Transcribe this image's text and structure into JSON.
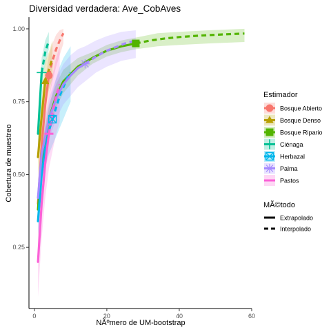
{
  "chart_data": {
    "type": "line",
    "title": "Diversidad verdadera: Ave_CobAves",
    "xlabel": "NÃºmero de UM-bootstrap",
    "ylabel": "Cobertura de muestreo",
    "xlim": [
      -1.5,
      60
    ],
    "ylim": [
      0.04,
      1.04
    ],
    "x_ticks": [
      {
        "value": 0,
        "label": "0"
      },
      {
        "value": 20,
        "label": "20"
      },
      {
        "value": 40,
        "label": "40"
      },
      {
        "value": 60,
        "label": "60"
      }
    ],
    "y_ticks": [
      {
        "value": 0.25,
        "label": "0.25"
      },
      {
        "value": 0.5,
        "label": "0.50"
      },
      {
        "value": 0.75,
        "label": "0.75"
      },
      {
        "value": 1.0,
        "label": "1.00"
      }
    ],
    "grid": false,
    "legend_placement": "right",
    "legend_title": "Estimador",
    "method_legend_title": "MÃ©todo",
    "methods": [
      {
        "name": "Extrapolado",
        "dash": "solid"
      },
      {
        "name": "Interpolado",
        "dash": "dashed"
      }
    ],
    "series": [
      {
        "name": "Bosque Abierto",
        "color": "#F8766D",
        "shape": "circle",
        "observed": {
          "x": 4,
          "y": 0.84
        },
        "interpolated": [
          [
            1,
            0.4
          ],
          [
            2,
            0.6
          ],
          [
            3,
            0.74
          ],
          [
            4,
            0.84
          ]
        ],
        "extrapolated": [
          [
            4,
            0.84
          ],
          [
            5,
            0.89
          ],
          [
            6,
            0.93
          ],
          [
            7,
            0.96
          ],
          [
            8,
            0.985
          ]
        ],
        "band": [
          [
            1,
            0.34,
            0.46
          ],
          [
            2,
            0.53,
            0.67
          ],
          [
            3,
            0.66,
            0.82
          ],
          [
            4,
            0.76,
            0.91
          ],
          [
            5,
            0.82,
            0.95
          ],
          [
            6,
            0.87,
            0.98
          ],
          [
            7,
            0.91,
            0.995
          ],
          [
            8,
            0.95,
            1.0
          ]
        ]
      },
      {
        "name": "Bosque Denso",
        "color": "#B79F00",
        "shape": "triangle",
        "observed": {
          "x": 3,
          "y": 0.82
        },
        "interpolated": [
          [
            1,
            0.56
          ],
          [
            2,
            0.7
          ],
          [
            3,
            0.82
          ]
        ],
        "extrapolated": [
          [
            3,
            0.82
          ],
          [
            4,
            0.86
          ],
          [
            5,
            0.9
          ]
        ],
        "band": [
          [
            1,
            0.5,
            0.62
          ],
          [
            2,
            0.63,
            0.77
          ],
          [
            3,
            0.75,
            0.89
          ],
          [
            4,
            0.79,
            0.92
          ],
          [
            5,
            0.83,
            0.96
          ]
        ]
      },
      {
        "name": "Bosque Ripario",
        "color": "#53B400",
        "shape": "square",
        "observed": {
          "x": 28,
          "y": 0.95
        },
        "interpolated": [
          [
            1,
            0.38
          ],
          [
            2,
            0.55
          ],
          [
            4,
            0.69
          ],
          [
            6,
            0.77
          ],
          [
            8,
            0.82
          ],
          [
            12,
            0.87
          ],
          [
            16,
            0.9
          ],
          [
            20,
            0.925
          ],
          [
            24,
            0.94
          ],
          [
            28,
            0.95
          ]
        ],
        "extrapolated": [
          [
            28,
            0.95
          ],
          [
            32,
            0.96
          ],
          [
            36,
            0.967
          ],
          [
            40,
            0.972
          ],
          [
            46,
            0.977
          ],
          [
            52,
            0.981
          ],
          [
            58,
            0.984
          ]
        ],
        "band": [
          [
            1,
            0.33,
            0.43
          ],
          [
            2,
            0.5,
            0.6
          ],
          [
            4,
            0.64,
            0.74
          ],
          [
            6,
            0.73,
            0.81
          ],
          [
            8,
            0.78,
            0.86
          ],
          [
            12,
            0.84,
            0.9
          ],
          [
            16,
            0.88,
            0.92
          ],
          [
            20,
            0.905,
            0.945
          ],
          [
            24,
            0.92,
            0.96
          ],
          [
            28,
            0.93,
            0.97
          ],
          [
            34,
            0.94,
            0.985
          ],
          [
            40,
            0.945,
            0.99
          ],
          [
            48,
            0.95,
            0.995
          ],
          [
            58,
            0.955,
            1.0
          ]
        ]
      },
      {
        "name": "Ciénaga",
        "color": "#00C094",
        "shape": "cross",
        "observed": {
          "x": 2,
          "y": 0.85
        },
        "interpolated": [
          [
            1,
            0.64
          ],
          [
            2,
            0.85
          ]
        ],
        "extrapolated": [
          [
            2,
            0.85
          ],
          [
            3,
            0.92
          ],
          [
            4,
            0.96
          ]
        ],
        "band": [
          [
            1,
            0.6,
            0.68
          ],
          [
            2,
            0.8,
            0.9
          ],
          [
            3,
            0.88,
            0.96
          ],
          [
            4,
            0.93,
            0.99
          ]
        ]
      },
      {
        "name": "Herbazal",
        "color": "#00B6EB",
        "shape": "square-x",
        "observed": {
          "x": 5,
          "y": 0.69
        },
        "interpolated": [
          [
            1,
            0.34
          ],
          [
            2,
            0.5
          ],
          [
            3,
            0.59
          ],
          [
            4,
            0.65
          ],
          [
            5,
            0.69
          ]
        ],
        "extrapolated": [
          [
            5,
            0.69
          ],
          [
            6,
            0.73
          ],
          [
            7,
            0.77
          ],
          [
            8,
            0.8
          ],
          [
            9,
            0.83
          ],
          [
            10,
            0.85
          ]
        ],
        "band": [
          [
            1,
            0.29,
            0.39
          ],
          [
            2,
            0.44,
            0.56
          ],
          [
            3,
            0.52,
            0.66
          ],
          [
            4,
            0.57,
            0.73
          ],
          [
            5,
            0.6,
            0.78
          ],
          [
            6,
            0.63,
            0.83
          ],
          [
            7,
            0.66,
            0.87
          ],
          [
            8,
            0.69,
            0.9
          ],
          [
            9,
            0.72,
            0.92
          ],
          [
            10,
            0.75,
            0.94
          ]
        ]
      },
      {
        "name": "Palma",
        "color": "#A58AFF",
        "shape": "asterisk",
        "observed": {
          "x": 14,
          "y": 0.88
        },
        "interpolated": [
          [
            1,
            0.42
          ],
          [
            2,
            0.57
          ],
          [
            4,
            0.69
          ],
          [
            6,
            0.76
          ],
          [
            8,
            0.81
          ],
          [
            10,
            0.84
          ],
          [
            12,
            0.865
          ],
          [
            14,
            0.88
          ]
        ],
        "extrapolated": [
          [
            14,
            0.88
          ],
          [
            17,
            0.905
          ],
          [
            20,
            0.925
          ],
          [
            23,
            0.94
          ],
          [
            25,
            0.95
          ],
          [
            28,
            0.96
          ]
        ],
        "band": [
          [
            1,
            0.36,
            0.48
          ],
          [
            2,
            0.51,
            0.63
          ],
          [
            4,
            0.62,
            0.76
          ],
          [
            6,
            0.69,
            0.83
          ],
          [
            8,
            0.74,
            0.88
          ],
          [
            10,
            0.77,
            0.91
          ],
          [
            12,
            0.8,
            0.93
          ],
          [
            14,
            0.82,
            0.94
          ],
          [
            17,
            0.85,
            0.96
          ],
          [
            20,
            0.87,
            0.975
          ],
          [
            24,
            0.89,
            0.99
          ],
          [
            28,
            0.9,
            0.995
          ]
        ]
      },
      {
        "name": "Pastos",
        "color": "#FB61D7",
        "shape": "line",
        "observed": {
          "x": 4,
          "y": 0.64
        },
        "interpolated": [
          [
            1,
            0.2
          ],
          [
            2,
            0.4
          ],
          [
            3,
            0.54
          ],
          [
            4,
            0.64
          ]
        ],
        "extrapolated": [
          [
            4,
            0.64
          ],
          [
            5,
            0.71
          ],
          [
            6,
            0.77
          ],
          [
            7,
            0.81
          ]
        ],
        "band": [
          [
            1,
            0.08,
            0.32
          ],
          [
            2,
            0.28,
            0.52
          ],
          [
            3,
            0.42,
            0.66
          ],
          [
            4,
            0.52,
            0.76
          ],
          [
            5,
            0.58,
            0.84
          ],
          [
            6,
            0.64,
            0.9
          ],
          [
            7,
            0.68,
            0.94
          ]
        ]
      }
    ]
  }
}
